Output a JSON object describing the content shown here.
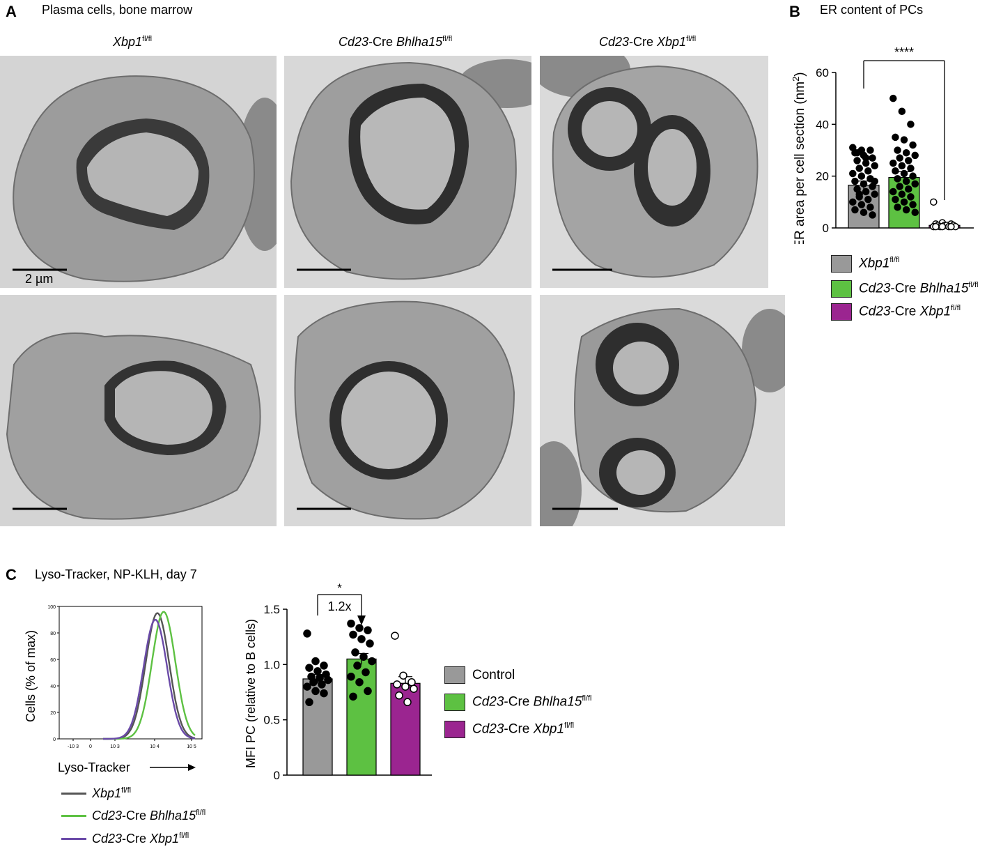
{
  "panel_a": {
    "letter": "A",
    "title": "Plasma cells, bone marrow",
    "columns": [
      {
        "gene": "Xbp1",
        "sup": "fl/fl",
        "prefix": ""
      },
      {
        "gene": "Bhlha15",
        "sup": "fl/fl",
        "prefix": "Cd23"
      },
      {
        "gene": "Xbp1",
        "sup": "fl/fl",
        "prefix": "Cd23"
      }
    ],
    "cre_word": "-Cre ",
    "scale_bar_label": "2 µm"
  },
  "panel_b": {
    "letter": "B",
    "title": "ER content of PCs",
    "legend": [
      {
        "gene": "Xbp1",
        "sup": "fl/fl",
        "prefix": "",
        "color": "#999999"
      },
      {
        "gene": "Bhlha15",
        "sup": "fl/fl",
        "prefix": "Cd23",
        "color": "#5dc142"
      },
      {
        "gene": "Xbp1",
        "sup": "fl/fl",
        "prefix": "Cd23",
        "color": "#9b2590"
      }
    ]
  },
  "panel_c": {
    "letter": "C",
    "title": "Lyso-Tracker, NP-KLH, day 7",
    "hist_xlabel": "Lyso-Tracker",
    "hist_ylabel": "Cells (% of max)",
    "hist_yticks": [
      "100",
      "80",
      "60",
      "40",
      "20",
      "0"
    ],
    "hist_xticks": [
      "-10 3",
      "0",
      "10 3",
      "10 4",
      "10 5"
    ],
    "hist_legend": [
      {
        "gene": "Xbp1",
        "sup": "fl/fl",
        "prefix": "",
        "color": "#555555"
      },
      {
        "gene": "Bhlha15",
        "sup": "fl/fl",
        "prefix": "Cd23",
        "color": "#5dc142"
      },
      {
        "gene": "Xbp1",
        "sup": "fl/fl",
        "prefix": "Cd23",
        "color": "#6a4aa8"
      }
    ],
    "legend": [
      {
        "text": "Control",
        "color": "#999999"
      },
      {
        "gene": "Bhlha15",
        "sup": "fl/fl",
        "prefix": "Cd23",
        "color": "#5dc142"
      },
      {
        "gene": "Xbp1",
        "sup": "fl/fl",
        "prefix": "Cd23",
        "color": "#9b2590"
      }
    ]
  },
  "chart_data": [
    {
      "type": "bar",
      "panel": "B",
      "title": "ER content of PCs",
      "ylabel": "ER area per cell section (nm2)",
      "ylim": [
        0,
        60
      ],
      "yticks": [
        0,
        20,
        40,
        60
      ],
      "categories": [
        "Xbp1 fl/fl",
        "Cd23-Cre Bhlha15 fl/fl",
        "Cd23-Cre Xbp1 fl/fl"
      ],
      "colors": [
        "#999999",
        "#5dc142",
        "#9b2590"
      ],
      "values": [
        16.5,
        19.5,
        1.0
      ],
      "sem": [
        1.6,
        2.2,
        0.4
      ],
      "points": [
        [
          31,
          30,
          30,
          29,
          28,
          27,
          26,
          25,
          24,
          23,
          22,
          21,
          20,
          19,
          18,
          17,
          16,
          15,
          14,
          13,
          12,
          11,
          10,
          9,
          8,
          7,
          6,
          5,
          29,
          27,
          18,
          13
        ],
        [
          50,
          45,
          40,
          35,
          34,
          32,
          30,
          29,
          28,
          27,
          26,
          25,
          24,
          23,
          22,
          21,
          20,
          19,
          18,
          17,
          16,
          15,
          14,
          13,
          12,
          11,
          10,
          9,
          8,
          7,
          6
        ],
        [
          10,
          2,
          1.5,
          1.5,
          1,
          1,
          1,
          1,
          0.5,
          0.5,
          0.5,
          0.5,
          0.5,
          0.5,
          0.5
        ]
      ],
      "significance": "****"
    },
    {
      "type": "bar",
      "panel": "C",
      "ylabel": "MFI PC (relative to B cells)",
      "ylim": [
        0,
        1.5
      ],
      "yticks": [
        "0",
        "0.5",
        "1.0",
        "1.5"
      ],
      "categories": [
        "Control",
        "Cd23-Cre Bhlha15 fl/fl",
        "Cd23-Cre Xbp1 fl/fl"
      ],
      "colors": [
        "#999999",
        "#5dc142",
        "#9b2590"
      ],
      "values": [
        0.87,
        1.05,
        0.83
      ],
      "sem": [
        0.04,
        0.05,
        0.06
      ],
      "points": [
        [
          1.28,
          1.03,
          0.99,
          0.97,
          0.94,
          0.91,
          0.89,
          0.88,
          0.86,
          0.84,
          0.82,
          0.8,
          0.76,
          0.74,
          0.66
        ],
        [
          1.37,
          1.33,
          1.31,
          1.27,
          1.23,
          1.19,
          1.11,
          1.07,
          1.03,
          0.99,
          0.93,
          0.89,
          0.84,
          0.76,
          0.71
        ],
        [
          1.26,
          0.9,
          0.84,
          0.82,
          0.8,
          0.78,
          0.72,
          0.66
        ]
      ],
      "significance": "*",
      "fold_change_label": "1.2x"
    },
    {
      "type": "line",
      "panel": "C-histogram",
      "xlabel": "Lyso-Tracker",
      "ylabel": "Cells (% of max)",
      "ylim": [
        0,
        100
      ],
      "series": [
        {
          "name": "Xbp1 fl/fl",
          "color": "#555555",
          "peak_x": 3.6,
          "peak_y": 95
        },
        {
          "name": "Cd23-Cre Bhlha15 fl/fl",
          "color": "#5dc142",
          "peak_x": 3.75,
          "peak_y": 96
        },
        {
          "name": "Cd23-Cre Xbp1 fl/fl",
          "color": "#6a4aa8",
          "peak_x": 3.55,
          "peak_y": 90
        }
      ]
    }
  ]
}
